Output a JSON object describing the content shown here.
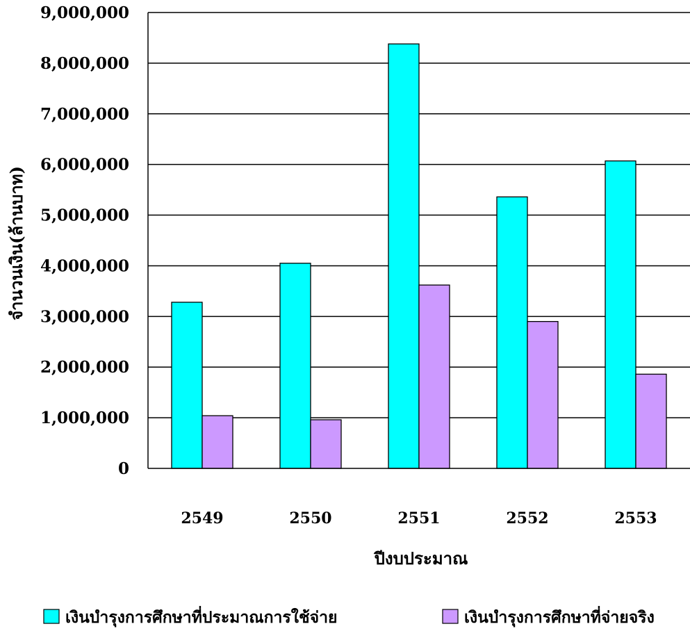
{
  "chart_data": {
    "type": "bar",
    "title": "",
    "xlabel": "ปีงบประมาณ",
    "ylabel": "จำนวนเงิน(ล้านบาท)",
    "categories": [
      "2549",
      "2550",
      "2551",
      "2552",
      "2553"
    ],
    "series": [
      {
        "name": "เงินบำรุงการศึกษาที่ประมาณการใช้จ่าย",
        "color": "#00ffff",
        "values": [
          3280000,
          4050000,
          8380000,
          5360000,
          6070000
        ]
      },
      {
        "name": "เงินบำรุงการศึกษาที่จ่ายจริง",
        "color": "#cc99ff",
        "values": [
          1040000,
          960000,
          3620000,
          2900000,
          1860000
        ]
      }
    ],
    "ylim": [
      0,
      9000000
    ],
    "yticks": [
      "0",
      "1,000,000",
      "2,000,000",
      "3,000,000",
      "4,000,000",
      "5,000,000",
      "6,000,000",
      "7,000,000",
      "8,000,000",
      "9,000,000"
    ],
    "grid": true,
    "legend": "bottom"
  }
}
